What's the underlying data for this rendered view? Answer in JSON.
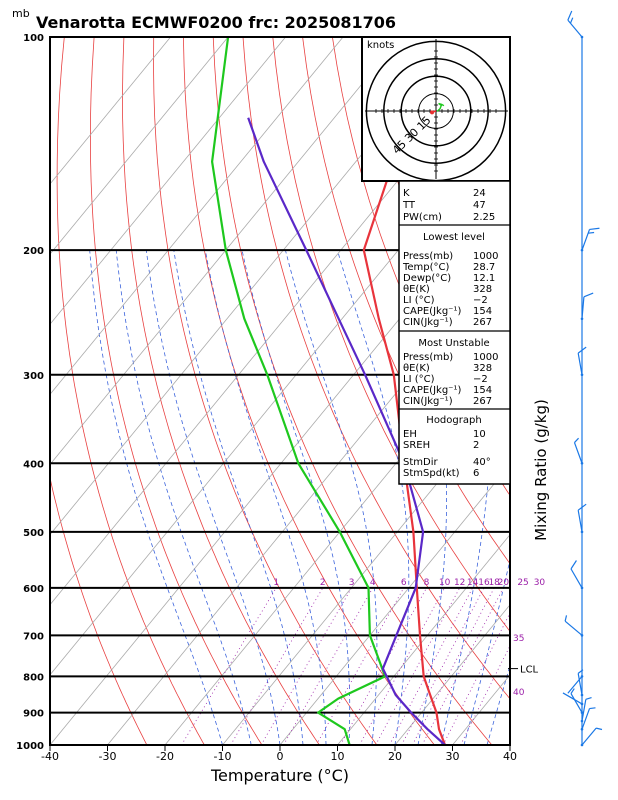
{
  "chart_data": {
    "type": "line",
    "title": "Venarotta ECMWF0200  frc: 2025081706",
    "pressure_unit": "mb",
    "xlabel": "Temperature (°C)",
    "ylabel_right": "Mixing Ratio (g/kg)",
    "xlim": [
      -40,
      40
    ],
    "x_ticks": [
      "-40",
      "-30",
      "-20",
      "-10",
      "0",
      "10",
      "20",
      "30",
      "40"
    ],
    "p_levels": [
      1000,
      900,
      800,
      700,
      600,
      500,
      400,
      300,
      200,
      100
    ],
    "p_labels": [
      "1000",
      "900",
      "800",
      "700",
      "600",
      "500",
      "400",
      "300",
      "200",
      "100"
    ],
    "mixing_ratio_labels": [
      "1",
      "2",
      "3",
      "4",
      "6",
      "8",
      "10",
      "12",
      "14",
      "16",
      "18",
      "20",
      "25",
      "30"
    ],
    "right_labels": [
      "35",
      "40"
    ],
    "lcl_label": "LCL",
    "lcl_pressure": 780,
    "series": [
      {
        "key": "temperature",
        "color": "#e8343c",
        "points": [
          [
            1000,
            28.7
          ],
          [
            950,
            25.4
          ],
          [
            900,
            22.6
          ],
          [
            850,
            19.0
          ],
          [
            800,
            15.2
          ],
          [
            700,
            8.7
          ],
          [
            600,
            1.4
          ],
          [
            500,
            -7.2
          ],
          [
            400,
            -18.6
          ],
          [
            300,
            -33.0
          ],
          [
            250,
            -43.6
          ],
          [
            200,
            -56.0
          ],
          [
            150,
            -63.5
          ],
          [
            100,
            -70.0
          ]
        ]
      },
      {
        "key": "dewpoint",
        "color": "#1ec81e",
        "points": [
          [
            1000,
            12.1
          ],
          [
            950,
            9.0
          ],
          [
            900,
            2.0
          ],
          [
            860,
            3.5
          ],
          [
            800,
            8.5
          ],
          [
            700,
            0.0
          ],
          [
            600,
            -7.0
          ],
          [
            500,
            -20.0
          ],
          [
            400,
            -37.0
          ],
          [
            300,
            -55.0
          ],
          [
            250,
            -67.0
          ],
          [
            200,
            -80.0
          ],
          [
            150,
            -95.0
          ],
          [
            100,
            -110.0
          ]
        ]
      },
      {
        "key": "parcel",
        "color": "#5a28c8",
        "points": [
          [
            1000,
            28.7
          ],
          [
            950,
            23.4
          ],
          [
            900,
            18.2
          ],
          [
            850,
            13.0
          ],
          [
            780,
            7.0
          ],
          [
            700,
            4.6
          ],
          [
            600,
            1.2
          ],
          [
            500,
            -5.5
          ],
          [
            400,
            -18.6
          ],
          [
            300,
            -38.0
          ],
          [
            200,
            -66.0
          ],
          [
            150,
            -86.0
          ],
          [
            130,
            -95.0
          ]
        ]
      }
    ],
    "wind_barbs": [
      {
        "p": 1000,
        "dir": 40,
        "spd": 6
      },
      {
        "p": 950,
        "dir": 20,
        "spd": 5
      },
      {
        "p": 925,
        "dir": 10,
        "spd": 6
      },
      {
        "p": 900,
        "dir": 330,
        "spd": 5
      },
      {
        "p": 875,
        "dir": 300,
        "spd": 4
      },
      {
        "p": 850,
        "dir": 350,
        "spd": 5
      },
      {
        "p": 800,
        "dir": 220,
        "spd": 3
      },
      {
        "p": 700,
        "dir": 310,
        "spd": 5
      },
      {
        "p": 600,
        "dir": 330,
        "spd": 12
      },
      {
        "p": 500,
        "dir": 350,
        "spd": 10
      },
      {
        "p": 400,
        "dir": 340,
        "spd": 8
      },
      {
        "p": 300,
        "dir": 350,
        "spd": 10
      },
      {
        "p": 250,
        "dir": 5,
        "spd": 10
      },
      {
        "p": 200,
        "dir": 20,
        "spd": 15
      },
      {
        "p": 100,
        "dir": 320,
        "spd": 15
      }
    ],
    "hodograph": {
      "label": "knots",
      "ring_labels": [
        "15",
        "30",
        "45"
      ],
      "points": [
        [
          0.5,
          -0.2
        ],
        [
          1.8,
          1.0
        ],
        [
          2.4,
          2.5
        ],
        [
          1.2,
          3.4
        ],
        [
          2.6,
          3.0
        ],
        [
          3.6,
          2.4
        ],
        [
          -1.6,
          -0.6
        ]
      ],
      "storm_motion": [
        -1.8,
        -0.6
      ]
    }
  },
  "indices": {
    "K": {
      "label": "K",
      "value": "24"
    },
    "TT": {
      "label": "TT",
      "value": "47"
    },
    "PW": {
      "label": "PW(cm)",
      "value": "2.25"
    }
  },
  "lowest_level": {
    "heading": "Lowest level",
    "press": {
      "label": "Press(mb)",
      "value": "1000"
    },
    "temp": {
      "label": "Temp(°C)",
      "value": "28.7"
    },
    "dewp": {
      "label": "Dewp(°C)",
      "value": "12.1"
    },
    "theta": {
      "label": "θE(K)",
      "value": "328"
    },
    "li": {
      "label": "LI  (°C)",
      "value": "−2"
    },
    "cape": {
      "label": "CAPE(Jkg⁻¹)",
      "value": "154"
    },
    "cin": {
      "label": "CIN(Jkg⁻¹)",
      "value": "267"
    }
  },
  "most_unstable": {
    "heading": "Most Unstable",
    "press": {
      "label": "Press(mb)",
      "value": "1000"
    },
    "theta": {
      "label": "θE(K)",
      "value": "328"
    },
    "li": {
      "label": "LI  (°C)",
      "value": "−2"
    },
    "cape": {
      "label": "CAPE(Jkg⁻¹)",
      "value": "154"
    },
    "cin": {
      "label": "CIN(Jkg⁻¹)",
      "value": "267"
    }
  },
  "hodograph_params": {
    "heading": "Hodograph",
    "eh": {
      "label": "EH",
      "value": "10"
    },
    "sreh": {
      "label": "SREH",
      "value": "2"
    },
    "stmdir": {
      "label": "StmDir",
      "value": "40°"
    },
    "stmspd": {
      "label": "StmSpd(kt)",
      "value": "6"
    }
  },
  "colors": {
    "temperature": "#e8343c",
    "dewpoint": "#1ec81e",
    "parcel": "#5a28c8",
    "isotherm": "#aaaaaa",
    "dry_adiabat": "#e84040",
    "moist_adiabat": "#3c64dc",
    "mixing_ratio": "#9b1fa8"
  }
}
